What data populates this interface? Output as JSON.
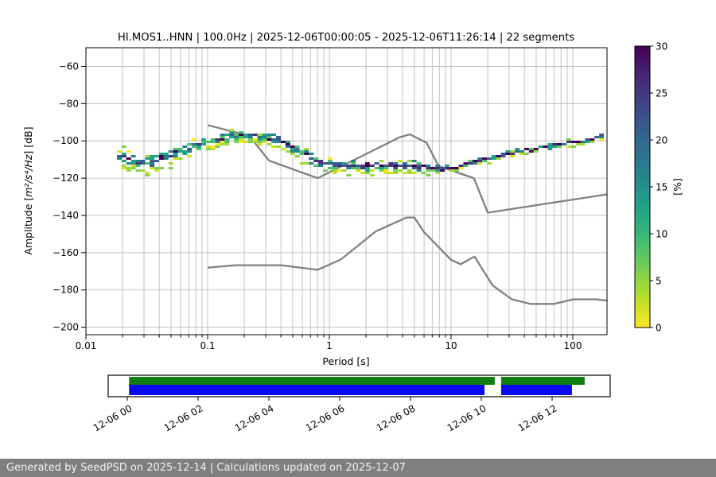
{
  "figure": {
    "footer": "Generated by SeedPSD on 2025-12-14 | Calculations updated on 2025-12-07"
  },
  "chart_data": {
    "type": "heatmap",
    "title": "HI.MOS1..HNN | 100.0Hz | 2025-12-06T00:00:05 - 2025-12-06T11:26:14 | 22 segments",
    "xlabel": "Period [s]",
    "ylabel": {
      "prefix": "Amplitude [",
      "math": "m²/s⁴/Hz",
      "suffix": "] [dB]"
    },
    "xscale": "log",
    "xlim": [
      0.01,
      191
    ],
    "ylim": [
      -204,
      -50
    ],
    "xticks": [
      0.01,
      0.1,
      1,
      10,
      100
    ],
    "xtick_labels": [
      "0.01",
      "0.1",
      "1",
      "10",
      "100"
    ],
    "yticks": [
      -60,
      -80,
      -100,
      -120,
      -140,
      -160,
      -180,
      -200
    ],
    "grid": true,
    "grid_color": "#b3b3b3",
    "colorbar": {
      "label": "[%]",
      "min": 0,
      "max": 30,
      "ticks": [
        0,
        5,
        10,
        15,
        20,
        25,
        30
      ],
      "colormap": "viridis_r",
      "stops": [
        "#440154",
        "#482878",
        "#3e4989",
        "#31688e",
        "#26828e",
        "#1f9e89",
        "#35b779",
        "#6ece58",
        "#b5de2b",
        "#fde725"
      ]
    },
    "noise_models": {
      "color": "#808080",
      "nhnm": [
        [
          0.1,
          -91.5
        ],
        [
          0.22,
          -97.4
        ],
        [
          0.32,
          -110.6
        ],
        [
          0.8,
          -120.0
        ],
        [
          3.8,
          -98.0
        ],
        [
          4.6,
          -96.5
        ],
        [
          6.3,
          -101.0
        ],
        [
          7.9,
          -113.5
        ],
        [
          15.4,
          -120.0
        ],
        [
          20,
          -138.5
        ],
        [
          191,
          -128.7
        ]
      ],
      "nlnm": [
        [
          0.1,
          -168.0
        ],
        [
          0.17,
          -166.7
        ],
        [
          0.4,
          -166.7
        ],
        [
          0.8,
          -169.2
        ],
        [
          1.24,
          -163.7
        ],
        [
          2.4,
          -148.6
        ],
        [
          4.3,
          -141.1
        ],
        [
          5.0,
          -141.1
        ],
        [
          6.0,
          -149.0
        ],
        [
          10.0,
          -163.8
        ],
        [
          12.0,
          -166.2
        ],
        [
          15.6,
          -162.1
        ],
        [
          21.9,
          -177.5
        ],
        [
          31.6,
          -185.0
        ],
        [
          45.0,
          -187.5
        ],
        [
          70.0,
          -187.5
        ],
        [
          101,
          -185.0
        ],
        [
          154,
          -185.0
        ],
        [
          191,
          -185.7
        ]
      ]
    },
    "ppsd_band": {
      "period_range": [
        0.018,
        191
      ],
      "mode_curve": [
        [
          0.018,
          -107.5
        ],
        [
          0.022,
          -109
        ],
        [
          0.03,
          -112
        ],
        [
          0.04,
          -109
        ],
        [
          0.055,
          -106
        ],
        [
          0.07,
          -103.5
        ],
        [
          0.09,
          -101
        ],
        [
          0.12,
          -98.5
        ],
        [
          0.16,
          -97
        ],
        [
          0.22,
          -96.8
        ],
        [
          0.3,
          -97.2
        ],
        [
          0.4,
          -99
        ],
        [
          0.55,
          -104
        ],
        [
          0.75,
          -110
        ],
        [
          1.0,
          -112.5
        ],
        [
          1.5,
          -113
        ],
        [
          2.5,
          -112.5
        ],
        [
          4.0,
          -112.5
        ],
        [
          6.0,
          -113
        ],
        [
          8.5,
          -114.5
        ],
        [
          11,
          -113.5
        ],
        [
          16,
          -110.5
        ],
        [
          22,
          -108.5
        ],
        [
          35,
          -105.5
        ],
        [
          55,
          -103
        ],
        [
          90,
          -100.5
        ],
        [
          130,
          -98.5
        ],
        [
          191,
          -96
        ]
      ],
      "halfwidth_curve": [
        [
          0.018,
          5
        ],
        [
          0.03,
          5
        ],
        [
          0.1,
          3.5
        ],
        [
          0.3,
          3
        ],
        [
          0.6,
          4
        ],
        [
          1.0,
          3.5
        ],
        [
          3.0,
          3.5
        ],
        [
          6.0,
          3.5
        ],
        [
          9.0,
          1.6
        ],
        [
          14,
          1.6
        ],
        [
          30,
          1.6
        ],
        [
          191,
          1.9
        ]
      ],
      "palette": {
        "core": [
          "#440154",
          "#46327e",
          "#365c8d"
        ],
        "mid": [
          "#277f8e",
          "#1fa187",
          "#4ac16d"
        ],
        "outer": [
          "#a0da39",
          "#7ad151",
          "#d0e11c"
        ],
        "rare": "#fde725"
      }
    },
    "timeline": {
      "tick_hours": [
        0,
        2,
        4,
        6,
        8,
        10,
        12
      ],
      "tick_labels": [
        "12-06 00",
        "12-06 02",
        "12-06 04",
        "12-06 06",
        "12-06 08",
        "12-06 10",
        "12-06 12"
      ],
      "range_hours": [
        -0.54,
        13.64
      ],
      "green": {
        "color": "#0f7d0f",
        "segments_hours": [
          [
            0.05,
            10.38
          ],
          [
            10.56,
            12.92
          ]
        ]
      },
      "blue": {
        "color": "#0a0af0",
        "segments_hours": [
          [
            0.05,
            10.09
          ],
          [
            10.56,
            12.56
          ]
        ]
      }
    }
  }
}
